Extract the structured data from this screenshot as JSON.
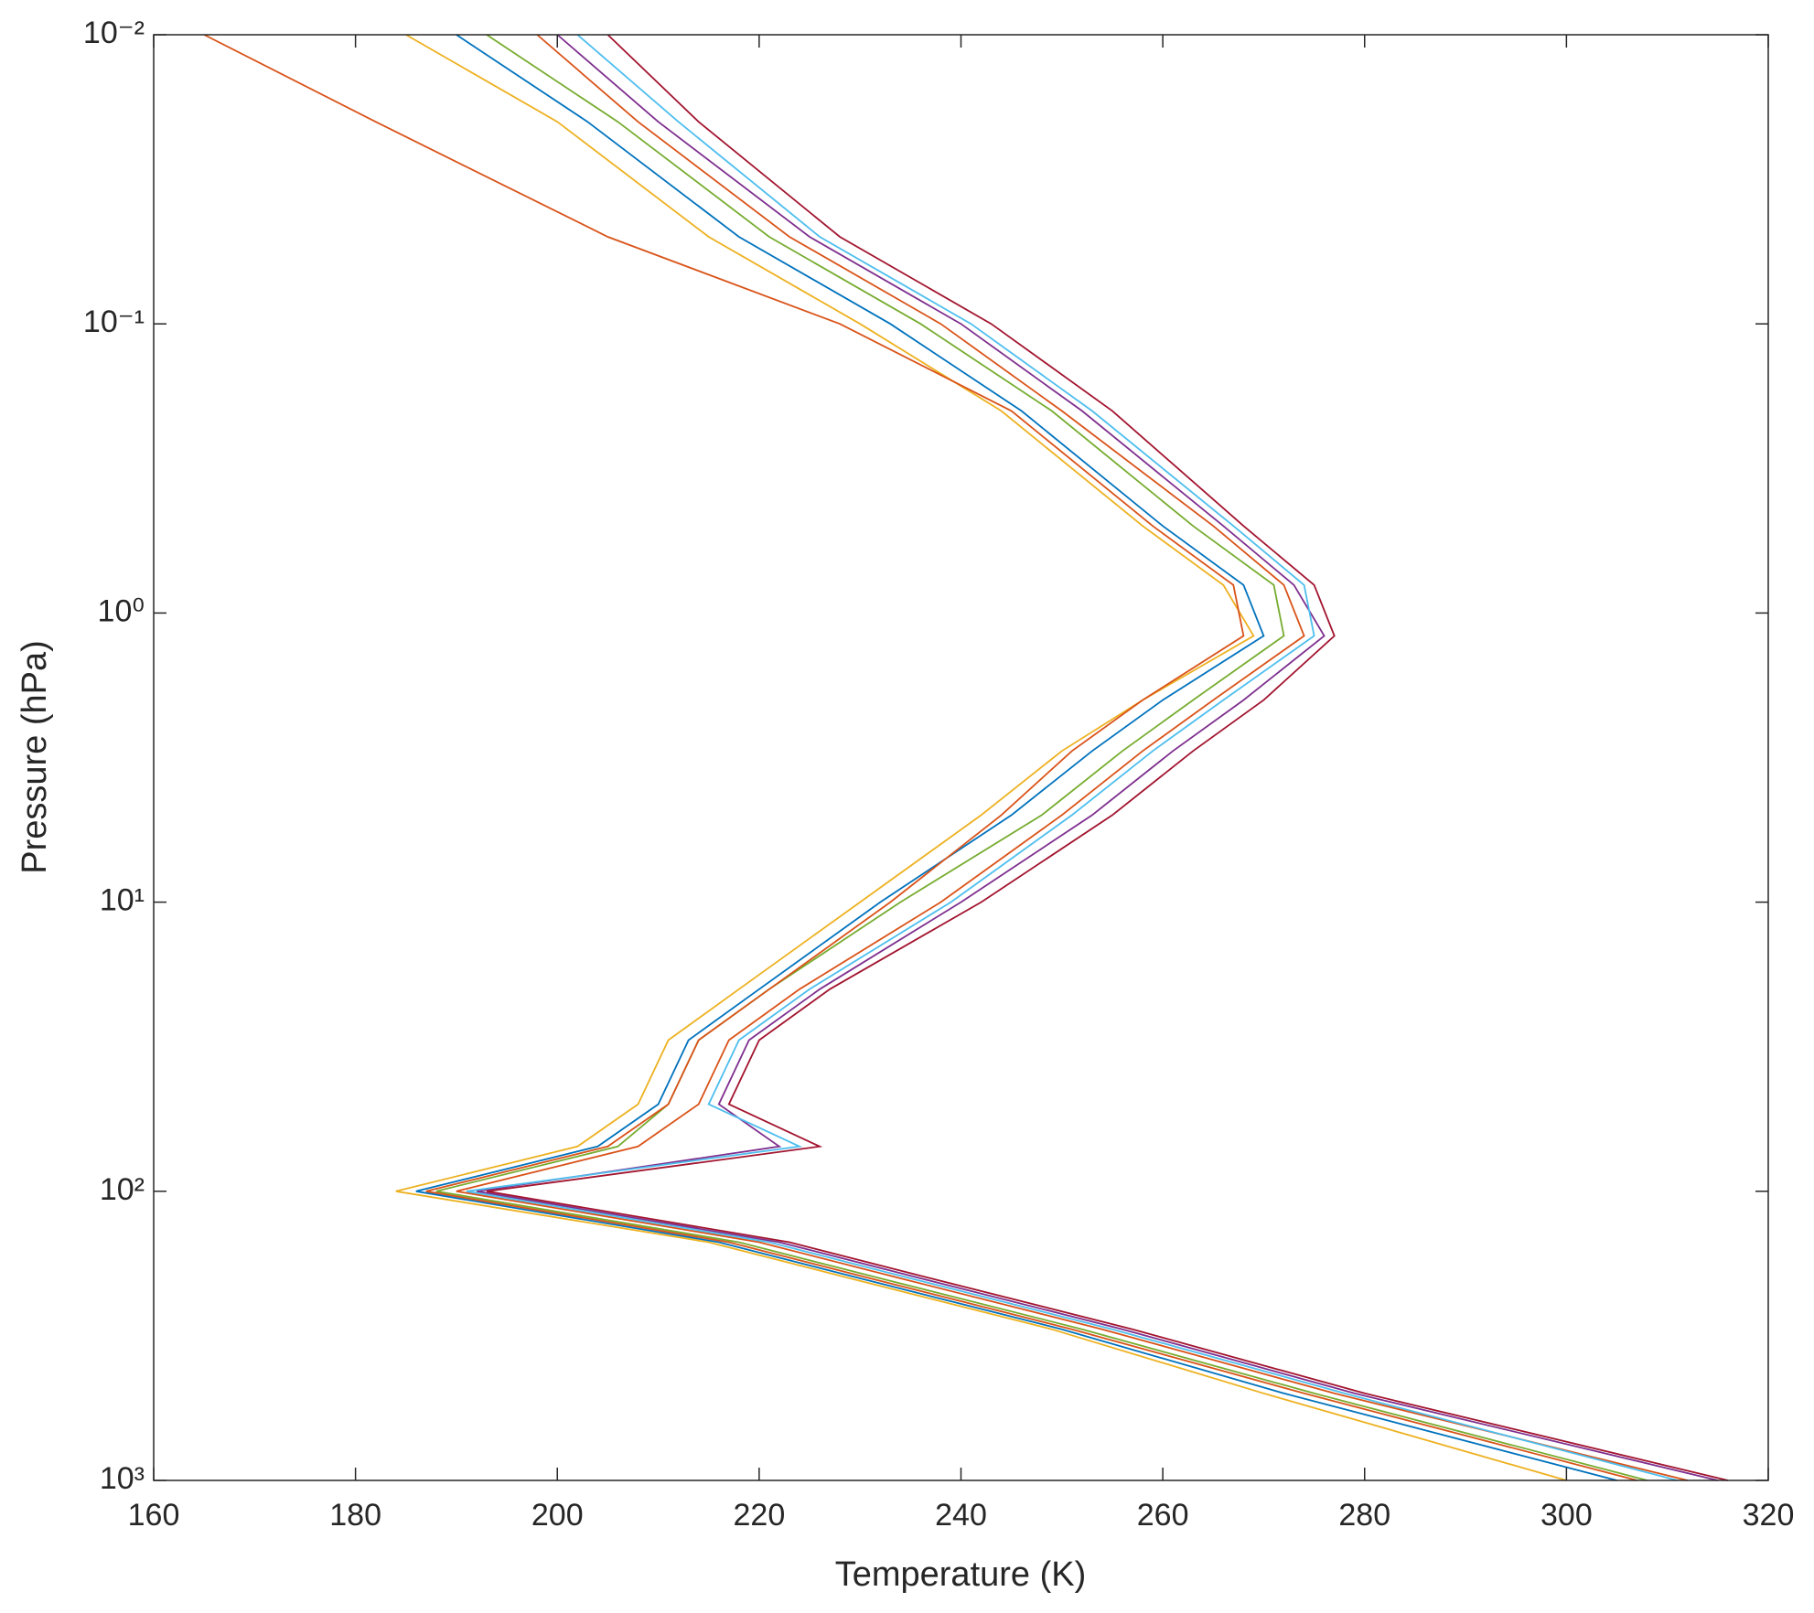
{
  "chart_data": {
    "type": "line",
    "xlabel": "Temperature (K)",
    "ylabel": "Pressure (hPa)",
    "xlim": [
      160,
      320
    ],
    "xticks": [
      160,
      180,
      200,
      220,
      240,
      260,
      280,
      300,
      320
    ],
    "ylim": [
      0.01,
      1000
    ],
    "yscale": "log",
    "yreversed": true,
    "yticks": [
      {
        "value": 0.01,
        "label": "10⁻²"
      },
      {
        "value": 0.1,
        "label": "10⁻¹"
      },
      {
        "value": 1,
        "label": "10⁰"
      },
      {
        "value": 10,
        "label": "10¹"
      },
      {
        "value": 100,
        "label": "10²"
      },
      {
        "value": 1000,
        "label": "10³"
      }
    ],
    "grid": false,
    "y": [
      0.01,
      0.02,
      0.05,
      0.1,
      0.2,
      0.5,
      0.8,
      1.2,
      2,
      3,
      5,
      10,
      20,
      30,
      50,
      70,
      100,
      150,
      200,
      300,
      500,
      1000
    ],
    "series": [
      {
        "color": "#0072BD",
        "values": [
          190,
          203,
          218,
          233,
          246,
          260,
          268,
          270,
          260,
          253,
          245,
          232,
          220,
          213,
          210,
          204,
          186,
          216,
          230,
          250,
          272,
          305
        ]
      },
      {
        "color": "#D95319",
        "values": [
          198,
          208,
          223,
          238,
          250,
          265,
          272,
          274,
          265,
          258,
          250,
          238,
          224,
          217,
          214,
          208,
          190,
          220,
          234,
          254,
          277,
          312
        ]
      },
      {
        "color": "#EDB120",
        "values": [
          185,
          200,
          215,
          230,
          244,
          258,
          266,
          269,
          258,
          250,
          242,
          230,
          218,
          211,
          208,
          202,
          184,
          215,
          229,
          249,
          270,
          300
        ]
      },
      {
        "color": "#7E2F8E",
        "values": [
          200,
          210,
          225,
          240,
          252,
          266,
          273,
          276,
          268,
          261,
          253,
          240,
          226,
          219,
          216,
          222,
          192,
          222,
          236,
          256,
          279,
          315
        ]
      },
      {
        "color": "#77AC30",
        "values": [
          193,
          206,
          221,
          236,
          249,
          263,
          271,
          272,
          263,
          256,
          248,
          234,
          221,
          214,
          211,
          206,
          188,
          218,
          232,
          252,
          275,
          308
        ]
      },
      {
        "color": "#4DBEEE",
        "values": [
          202,
          212,
          226,
          241,
          253,
          267,
          274,
          275,
          266,
          259,
          251,
          239,
          225,
          218,
          215,
          224,
          191,
          221,
          235,
          255,
          278,
          311
        ]
      },
      {
        "color": "#D95319",
        "values": [
          165,
          182,
          205,
          228,
          245,
          259,
          267,
          268,
          258,
          251,
          244,
          233,
          221,
          214,
          211,
          205,
          187,
          217,
          231,
          251,
          274,
          307
        ]
      },
      {
        "color": "#A2142F",
        "values": [
          205,
          214,
          228,
          243,
          255,
          268,
          275,
          277,
          270,
          263,
          255,
          242,
          227,
          220,
          217,
          226,
          193,
          223,
          237,
          257,
          280,
          316
        ]
      }
    ]
  }
}
